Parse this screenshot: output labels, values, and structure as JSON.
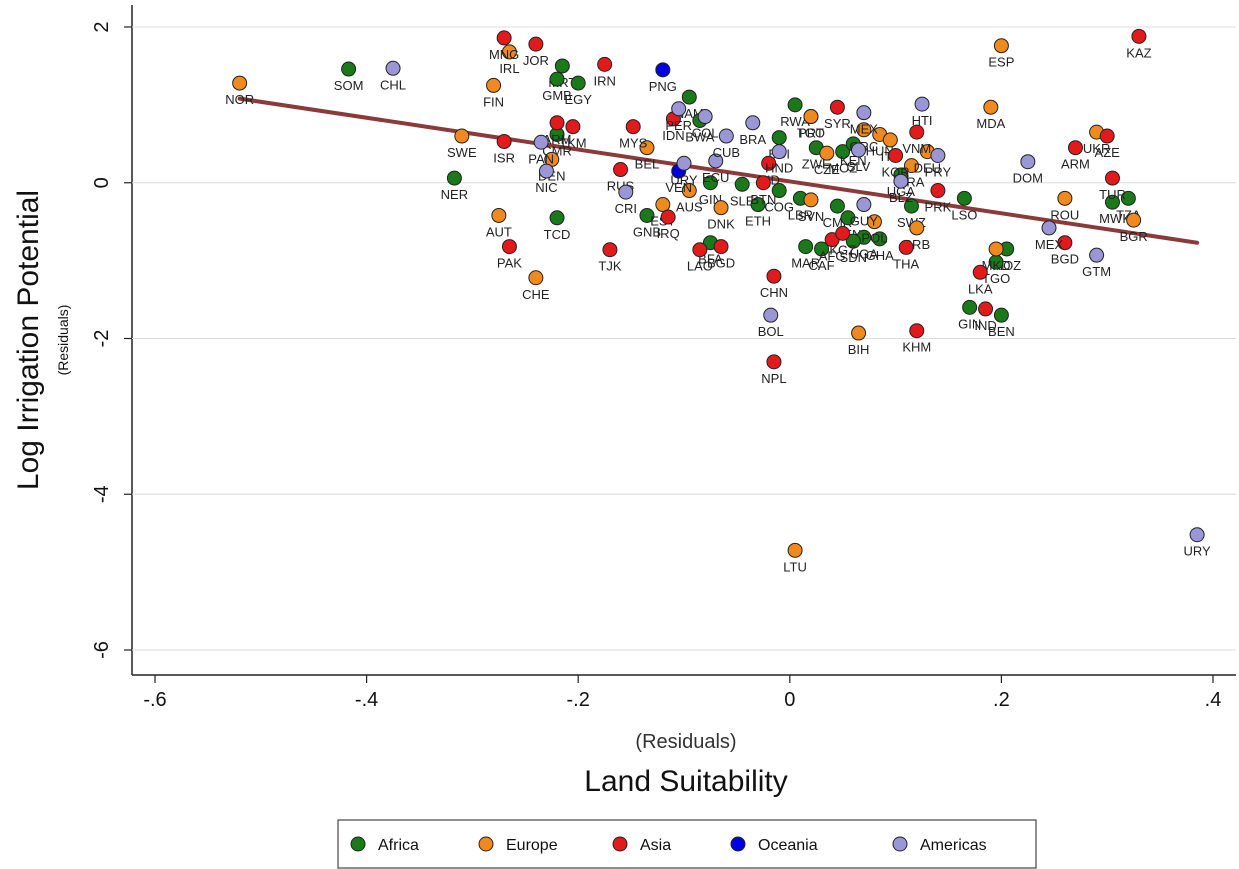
{
  "chart_data": {
    "type": "scatter",
    "title": "",
    "xlabel": "Land Suitability",
    "xlabel_sub": "(Residuals)",
    "ylabel": "Log Irrigation Potential",
    "ylabel_sub": "(Residuals)",
    "xlim": [
      -0.6,
      0.4
    ],
    "ylim": [
      -6,
      2
    ],
    "xticks": [
      {
        "v": -0.6,
        "label": "-.6"
      },
      {
        "v": -0.4,
        "label": "-.4"
      },
      {
        "v": -0.2,
        "label": "-.2"
      },
      {
        "v": 0,
        "label": "0"
      },
      {
        "v": 0.2,
        "label": ".2"
      },
      {
        "v": 0.4,
        "label": ".4"
      }
    ],
    "yticks": [
      {
        "v": 2,
        "label": "2"
      },
      {
        "v": 0,
        "label": "0"
      },
      {
        "v": -2,
        "label": "-2"
      },
      {
        "v": -4,
        "label": "-4"
      },
      {
        "v": -6,
        "label": "-6"
      }
    ],
    "grid": "horizontal",
    "legend_position": "bottom",
    "fit_line": {
      "x": [
        -0.52,
        0.385
      ],
      "y": [
        1.08,
        -0.77
      ],
      "color": "#8B3A3A"
    },
    "series": [
      {
        "name": "Africa",
        "color": "#1a7a1a",
        "points": [
          {
            "x": -0.417,
            "y": 1.46,
            "label": "SOM"
          },
          {
            "x": -0.317,
            "y": 0.06,
            "label": "NER"
          },
          {
            "x": -0.215,
            "y": 1.5,
            "label": "MRT"
          },
          {
            "x": -0.22,
            "y": 1.33,
            "label": "GMB"
          },
          {
            "x": -0.2,
            "y": 1.28,
            "label": "EGY"
          },
          {
            "x": -0.22,
            "y": 0.62,
            "label": "CMR"
          },
          {
            "x": -0.22,
            "y": -0.45,
            "label": "TCD"
          },
          {
            "x": -0.135,
            "y": -0.42,
            "label": "GNB"
          },
          {
            "x": -0.095,
            "y": 1.1,
            "label": "NAM"
          },
          {
            "x": -0.085,
            "y": 0.8,
            "label": "BWA"
          },
          {
            "x": -0.075,
            "y": 0.0,
            "label": "GIN"
          },
          {
            "x": -0.045,
            "y": -0.02,
            "label": "SLE"
          },
          {
            "x": -0.075,
            "y": -0.77,
            "label": "BFA"
          },
          {
            "x": -0.03,
            "y": -0.28,
            "label": "ETH"
          },
          {
            "x": 0.005,
            "y": 1.0,
            "label": "RWA"
          },
          {
            "x": -0.01,
            "y": 0.58,
            "label": "BDI"
          },
          {
            "x": -0.01,
            "y": -0.1,
            "label": "COG"
          },
          {
            "x": 0.01,
            "y": -0.2,
            "label": "LBR"
          },
          {
            "x": 0.02,
            "y": 0.85,
            "label": "TGO"
          },
          {
            "x": 0.025,
            "y": 0.45,
            "label": "ZWE"
          },
          {
            "x": 0.045,
            "y": -0.3,
            "label": "CMR"
          },
          {
            "x": 0.05,
            "y": 0.4,
            "label": "MOZ"
          },
          {
            "x": 0.055,
            "y": -0.45,
            "label": "SEN"
          },
          {
            "x": 0.06,
            "y": 0.5,
            "label": "KEN"
          },
          {
            "x": 0.015,
            "y": -0.82,
            "label": "MAR"
          },
          {
            "x": 0.03,
            "y": -0.85,
            "label": "CAF"
          },
          {
            "x": 0.07,
            "y": -0.7,
            "label": "UGA"
          },
          {
            "x": 0.085,
            "y": -0.72,
            "label": "GHA"
          },
          {
            "x": 0.06,
            "y": -0.75,
            "label": "SDN"
          },
          {
            "x": 0.115,
            "y": -0.3,
            "label": "SWZ"
          },
          {
            "x": 0.105,
            "y": 0.1,
            "label": "UGA"
          },
          {
            "x": 0.165,
            "y": -0.2,
            "label": "LSO"
          },
          {
            "x": 0.205,
            "y": -0.85,
            "label": "MOZ"
          },
          {
            "x": 0.195,
            "y": -1.02,
            "label": "TGO"
          },
          {
            "x": 0.17,
            "y": -1.6,
            "label": "GIN"
          },
          {
            "x": 0.2,
            "y": -1.7,
            "label": "BEN"
          },
          {
            "x": 0.305,
            "y": -0.25,
            "label": "MWI"
          },
          {
            "x": 0.32,
            "y": -0.2,
            "label": "TZA"
          }
        ]
      },
      {
        "name": "Europe",
        "color": "#f08a1e",
        "points": [
          {
            "x": -0.52,
            "y": 1.28,
            "label": "NOR"
          },
          {
            "x": -0.28,
            "y": 1.25,
            "label": "FIN"
          },
          {
            "x": -0.265,
            "y": 1.68,
            "label": "IRL"
          },
          {
            "x": -0.31,
            "y": 0.6,
            "label": "SWE"
          },
          {
            "x": -0.275,
            "y": -0.42,
            "label": "AUT"
          },
          {
            "x": -0.24,
            "y": -1.22,
            "label": "CHE"
          },
          {
            "x": -0.225,
            "y": 0.3,
            "label": "DEN"
          },
          {
            "x": -0.135,
            "y": 0.45,
            "label": "BEL"
          },
          {
            "x": -0.12,
            "y": -0.28,
            "label": "EST"
          },
          {
            "x": -0.095,
            "y": -0.1,
            "label": "AUS"
          },
          {
            "x": -0.065,
            "y": -0.32,
            "label": "DNK"
          },
          {
            "x": 0.02,
            "y": -0.22,
            "label": "SVN"
          },
          {
            "x": 0.02,
            "y": 0.85,
            "label": "PRT"
          },
          {
            "x": 0.035,
            "y": 0.38,
            "label": "CZE"
          },
          {
            "x": 0.07,
            "y": 0.68,
            "label": "GRC"
          },
          {
            "x": 0.085,
            "y": 0.62,
            "label": "HUN"
          },
          {
            "x": 0.095,
            "y": 0.55,
            "label": "ITA"
          },
          {
            "x": 0.08,
            "y": -0.5,
            "label": "POL"
          },
          {
            "x": 0.115,
            "y": 0.22,
            "label": "FRA"
          },
          {
            "x": 0.13,
            "y": 0.4,
            "label": "DEU"
          },
          {
            "x": 0.12,
            "y": -0.58,
            "label": "SRB"
          },
          {
            "x": 0.19,
            "y": 0.97,
            "label": "MDA"
          },
          {
            "x": 0.2,
            "y": 1.76,
            "label": "ESP"
          },
          {
            "x": 0.195,
            "y": -0.85,
            "label": "MKD"
          },
          {
            "x": 0.26,
            "y": -0.2,
            "label": "ROU"
          },
          {
            "x": 0.29,
            "y": 0.65,
            "label": "UKR"
          },
          {
            "x": 0.325,
            "y": -0.48,
            "label": "BGR"
          },
          {
            "x": 0.005,
            "y": -4.72,
            "label": "LTU"
          },
          {
            "x": 0.065,
            "y": -1.93,
            "label": "BIH"
          }
        ]
      },
      {
        "name": "Asia",
        "color": "#e31a1c",
        "points": [
          {
            "x": -0.27,
            "y": 1.86,
            "label": "MNG"
          },
          {
            "x": -0.24,
            "y": 1.78,
            "label": "JOR"
          },
          {
            "x": -0.175,
            "y": 1.52,
            "label": "IRN"
          },
          {
            "x": -0.27,
            "y": 0.53,
            "label": "ISR"
          },
          {
            "x": -0.22,
            "y": 0.77,
            "label": "ARM"
          },
          {
            "x": -0.205,
            "y": 0.72,
            "label": "TKM"
          },
          {
            "x": -0.265,
            "y": -0.82,
            "label": "PAK"
          },
          {
            "x": -0.17,
            "y": -0.86,
            "label": "TJK"
          },
          {
            "x": -0.148,
            "y": 0.72,
            "label": "MYS"
          },
          {
            "x": -0.16,
            "y": 0.17,
            "label": "RUS"
          },
          {
            "x": -0.11,
            "y": 0.82,
            "label": "IDN"
          },
          {
            "x": -0.115,
            "y": -0.44,
            "label": "IRQ"
          },
          {
            "x": -0.085,
            "y": -0.86,
            "label": "LAO"
          },
          {
            "x": -0.065,
            "y": -0.82,
            "label": "BGD"
          },
          {
            "x": -0.02,
            "y": 0.25,
            "label": "IND"
          },
          {
            "x": -0.025,
            "y": 0.0,
            "label": "BTN"
          },
          {
            "x": -0.015,
            "y": -1.2,
            "label": "CHN"
          },
          {
            "x": -0.015,
            "y": -2.3,
            "label": "NPL"
          },
          {
            "x": 0.045,
            "y": 0.97,
            "label": "SYR"
          },
          {
            "x": 0.04,
            "y": -0.73,
            "label": "AFG"
          },
          {
            "x": 0.05,
            "y": -0.65,
            "label": "KGZ"
          },
          {
            "x": 0.1,
            "y": 0.35,
            "label": "KOR"
          },
          {
            "x": 0.12,
            "y": 0.65,
            "label": "VNM"
          },
          {
            "x": 0.11,
            "y": -0.83,
            "label": "THA"
          },
          {
            "x": 0.14,
            "y": -0.1,
            "label": "PRK"
          },
          {
            "x": 0.12,
            "y": -1.9,
            "label": "KHM"
          },
          {
            "x": 0.18,
            "y": -1.15,
            "label": "LKA"
          },
          {
            "x": 0.185,
            "y": -1.62,
            "label": "IND"
          },
          {
            "x": 0.26,
            "y": -0.77,
            "label": "BGD"
          },
          {
            "x": 0.27,
            "y": 0.45,
            "label": "ARM"
          },
          {
            "x": 0.3,
            "y": 0.6,
            "label": "AZE"
          },
          {
            "x": 0.305,
            "y": 0.06,
            "label": "TUR"
          },
          {
            "x": 0.33,
            "y": 1.88,
            "label": "KAZ"
          }
        ]
      },
      {
        "name": "Oceania",
        "color": "#0000e0",
        "points": [
          {
            "x": -0.12,
            "y": 1.45,
            "label": "PNG"
          },
          {
            "x": -0.105,
            "y": 0.15,
            "label": "VEN"
          }
        ]
      },
      {
        "name": "Americas",
        "color": "#9b97d6",
        "points": [
          {
            "x": -0.375,
            "y": 1.47,
            "label": "CHL"
          },
          {
            "x": -0.235,
            "y": 0.52,
            "label": "PAN"
          },
          {
            "x": -0.23,
            "y": 0.15,
            "label": "NIC"
          },
          {
            "x": -0.155,
            "y": -0.12,
            "label": "CRI"
          },
          {
            "x": -0.105,
            "y": 0.95,
            "label": "PER"
          },
          {
            "x": -0.1,
            "y": 0.25,
            "label": "URY"
          },
          {
            "x": -0.08,
            "y": 0.85,
            "label": "COL"
          },
          {
            "x": -0.07,
            "y": 0.28,
            "label": "ECU"
          },
          {
            "x": -0.06,
            "y": 0.6,
            "label": "CUB"
          },
          {
            "x": -0.035,
            "y": 0.77,
            "label": "BRA"
          },
          {
            "x": -0.01,
            "y": 0.4,
            "label": "HND"
          },
          {
            "x": 0.065,
            "y": 0.42,
            "label": "SLV"
          },
          {
            "x": 0.07,
            "y": 0.9,
            "label": "MEX"
          },
          {
            "x": 0.07,
            "y": -0.28,
            "label": "GUY"
          },
          {
            "x": 0.105,
            "y": 0.02,
            "label": "BLZ"
          },
          {
            "x": 0.125,
            "y": 1.01,
            "label": "HTI"
          },
          {
            "x": 0.14,
            "y": 0.35,
            "label": "PRY"
          },
          {
            "x": 0.225,
            "y": 0.27,
            "label": "DOM"
          },
          {
            "x": 0.245,
            "y": -0.58,
            "label": "MEX"
          },
          {
            "x": 0.29,
            "y": -0.93,
            "label": "GTM"
          },
          {
            "x": -0.018,
            "y": -1.7,
            "label": "BOL"
          },
          {
            "x": 0.385,
            "y": -4.52,
            "label": "URY"
          }
        ]
      }
    ]
  }
}
